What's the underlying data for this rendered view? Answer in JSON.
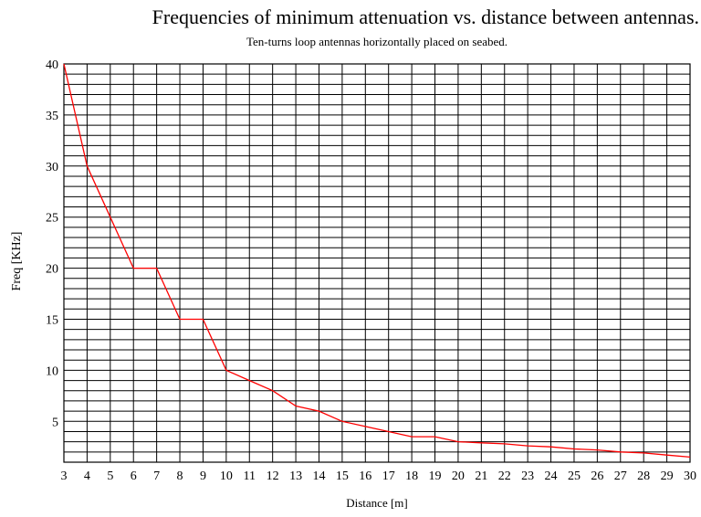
{
  "chart_data": {
    "type": "line",
    "title": "Frequencies of minimum attenuation vs. distance between antennas.",
    "subtitle": "Ten-turns loop antennas horizontally placed on seabed.",
    "xlabel": "Distance [m]",
    "ylabel": "Freq [KHz]",
    "xlim": [
      3,
      30
    ],
    "ylim": [
      1,
      40
    ],
    "x_ticks": [
      "3",
      "4",
      "5",
      "6",
      "7",
      "8",
      "9",
      "10",
      "11",
      "12",
      "13",
      "14",
      "15",
      "16",
      "17",
      "18",
      "19",
      "20",
      "21",
      "22",
      "23",
      "24",
      "25",
      "26",
      "27",
      "28",
      "29",
      "30"
    ],
    "y_ticks": [
      "5",
      "10",
      "15",
      "20",
      "25",
      "30",
      "35",
      "40"
    ],
    "grid": true,
    "line_color": "#ff0000",
    "series": [
      {
        "x": [
          3,
          4,
          5,
          6,
          7,
          8,
          9,
          10,
          11,
          12,
          13,
          14,
          15,
          16,
          17,
          18,
          19,
          20,
          21,
          22,
          23,
          24,
          25,
          26,
          27,
          28,
          29,
          30
        ],
        "y": [
          40,
          30,
          25,
          20,
          20,
          15,
          15,
          10,
          9,
          8,
          6.5,
          6,
          5,
          4.5,
          4,
          3.5,
          3.5,
          3,
          2.9,
          2.8,
          2.6,
          2.5,
          2.3,
          2.2,
          2,
          1.9,
          1.7,
          1.5
        ]
      }
    ]
  }
}
